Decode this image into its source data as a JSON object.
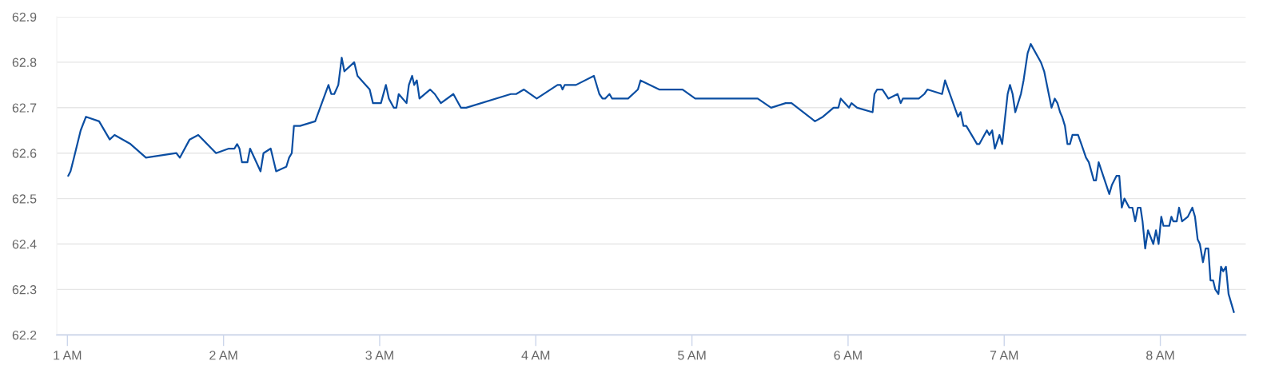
{
  "chart_data": {
    "type": "line",
    "xlim": [
      0.932,
      8.547
    ],
    "xticks": [
      {
        "value": 1,
        "label": "1 AM"
      },
      {
        "value": 2,
        "label": "2 AM"
      },
      {
        "value": 3,
        "label": "3 AM"
      },
      {
        "value": 4,
        "label": "4 AM"
      },
      {
        "value": 5,
        "label": "5 AM"
      },
      {
        "value": 6,
        "label": "6 AM"
      },
      {
        "value": 7,
        "label": "7 AM"
      },
      {
        "value": 8,
        "label": "8 AM"
      }
    ],
    "ylim": [
      62.2,
      62.9
    ],
    "yticks": [
      62.2,
      62.3,
      62.4,
      62.5,
      62.6,
      62.7,
      62.8,
      62.9
    ],
    "grid": "y",
    "marker": "none",
    "line_style": "solid",
    "x": [
      1.005,
      1.02,
      1.042,
      1.085,
      1.119,
      1.203,
      1.271,
      1.302,
      1.404,
      1.503,
      1.698,
      1.72,
      1.783,
      1.838,
      1.952,
      2.034,
      2.07,
      2.087,
      2.102,
      2.118,
      2.153,
      2.17,
      2.237,
      2.256,
      2.302,
      2.337,
      2.402,
      2.42,
      2.437,
      2.451,
      2.49,
      2.587,
      2.672,
      2.69,
      2.709,
      2.735,
      2.757,
      2.774,
      2.837,
      2.858,
      2.936,
      2.957,
      3.008,
      3.04,
      3.059,
      3.09,
      3.107,
      3.122,
      3.172,
      3.187,
      3.208,
      3.221,
      3.238,
      3.255,
      3.323,
      3.353,
      3.392,
      3.472,
      3.52,
      3.554,
      3.84,
      3.874,
      3.924,
      4.006,
      4.139,
      4.159,
      4.171,
      4.185,
      4.257,
      4.372,
      4.407,
      4.427,
      4.444,
      4.472,
      4.489,
      4.591,
      4.654,
      4.671,
      4.79,
      4.94,
      5.021,
      5.421,
      5.507,
      5.6,
      5.638,
      5.788,
      5.839,
      5.907,
      5.938,
      5.953,
      6.006,
      6.022,
      6.058,
      6.157,
      6.169,
      6.186,
      6.22,
      6.258,
      6.317,
      6.337,
      6.351,
      6.453,
      6.488,
      6.508,
      6.602,
      6.621,
      6.704,
      6.721,
      6.739,
      6.757,
      6.826,
      6.841,
      6.889,
      6.905,
      6.923,
      6.94,
      6.97,
      6.987,
      7.022,
      7.037,
      7.054,
      7.071,
      7.107,
      7.124,
      7.15,
      7.17,
      7.235,
      7.256,
      7.303,
      7.324,
      7.341,
      7.358,
      7.371,
      7.389,
      7.405,
      7.421,
      7.437,
      7.473,
      7.494,
      7.524,
      7.542,
      7.574,
      7.588,
      7.605,
      7.673,
      7.69,
      7.719,
      7.737,
      7.753,
      7.77,
      7.801,
      7.821,
      7.839,
      7.856,
      7.873,
      7.886,
      7.903,
      7.921,
      7.955,
      7.972,
      7.989,
      8.006,
      8.02,
      8.057,
      8.071,
      8.083,
      8.105,
      8.12,
      8.139,
      8.176,
      8.205,
      8.222,
      8.239,
      8.253,
      8.273,
      8.29,
      8.307,
      8.321,
      8.338,
      8.352,
      8.372,
      8.389,
      8.403,
      8.42,
      8.437,
      8.471
    ],
    "series": [
      {
        "color": "#0b4ea2",
        "values": [
          62.55,
          62.56,
          62.59,
          62.65,
          62.68,
          62.67,
          62.63,
          62.64,
          62.62,
          62.59,
          62.6,
          62.59,
          62.63,
          62.64,
          62.6,
          62.61,
          62.61,
          62.62,
          62.61,
          62.58,
          62.58,
          62.61,
          62.56,
          62.6,
          62.61,
          62.56,
          62.57,
          62.59,
          62.6,
          62.66,
          62.66,
          62.67,
          62.75,
          62.73,
          62.73,
          62.75,
          62.81,
          62.78,
          62.8,
          62.77,
          62.74,
          62.71,
          62.71,
          62.75,
          62.72,
          62.7,
          62.7,
          62.73,
          62.71,
          62.75,
          62.77,
          62.75,
          62.76,
          62.72,
          62.74,
          62.73,
          62.71,
          62.73,
          62.7,
          62.7,
          62.73,
          62.73,
          62.74,
          62.72,
          62.75,
          62.75,
          62.74,
          62.75,
          62.75,
          62.77,
          62.73,
          62.72,
          62.72,
          62.73,
          62.72,
          62.72,
          62.74,
          62.76,
          62.74,
          62.74,
          62.72,
          62.72,
          62.7,
          62.71,
          62.71,
          62.67,
          62.68,
          62.7,
          62.7,
          62.72,
          62.7,
          62.71,
          62.7,
          62.69,
          62.73,
          62.74,
          62.74,
          62.72,
          62.73,
          62.71,
          62.72,
          62.72,
          62.73,
          62.74,
          62.73,
          62.76,
          62.68,
          62.69,
          62.66,
          62.66,
          62.62,
          62.62,
          62.65,
          62.64,
          62.65,
          62.61,
          62.64,
          62.62,
          62.73,
          62.75,
          62.73,
          62.69,
          62.73,
          62.76,
          62.82,
          62.84,
          62.8,
          62.78,
          62.7,
          62.72,
          62.71,
          62.69,
          62.68,
          62.66,
          62.62,
          62.62,
          62.64,
          62.64,
          62.62,
          62.59,
          62.58,
          62.54,
          62.54,
          62.58,
          62.51,
          62.53,
          62.55,
          62.55,
          62.48,
          62.5,
          62.48,
          62.48,
          62.45,
          62.48,
          62.48,
          62.45,
          62.39,
          62.43,
          62.4,
          62.43,
          62.4,
          62.46,
          62.44,
          62.44,
          62.46,
          62.45,
          62.45,
          62.48,
          62.45,
          62.46,
          62.48,
          62.46,
          62.41,
          62.4,
          62.36,
          62.39,
          62.39,
          62.32,
          62.32,
          62.3,
          62.29,
          62.35,
          62.34,
          62.35,
          62.29,
          62.25
        ]
      }
    ]
  }
}
